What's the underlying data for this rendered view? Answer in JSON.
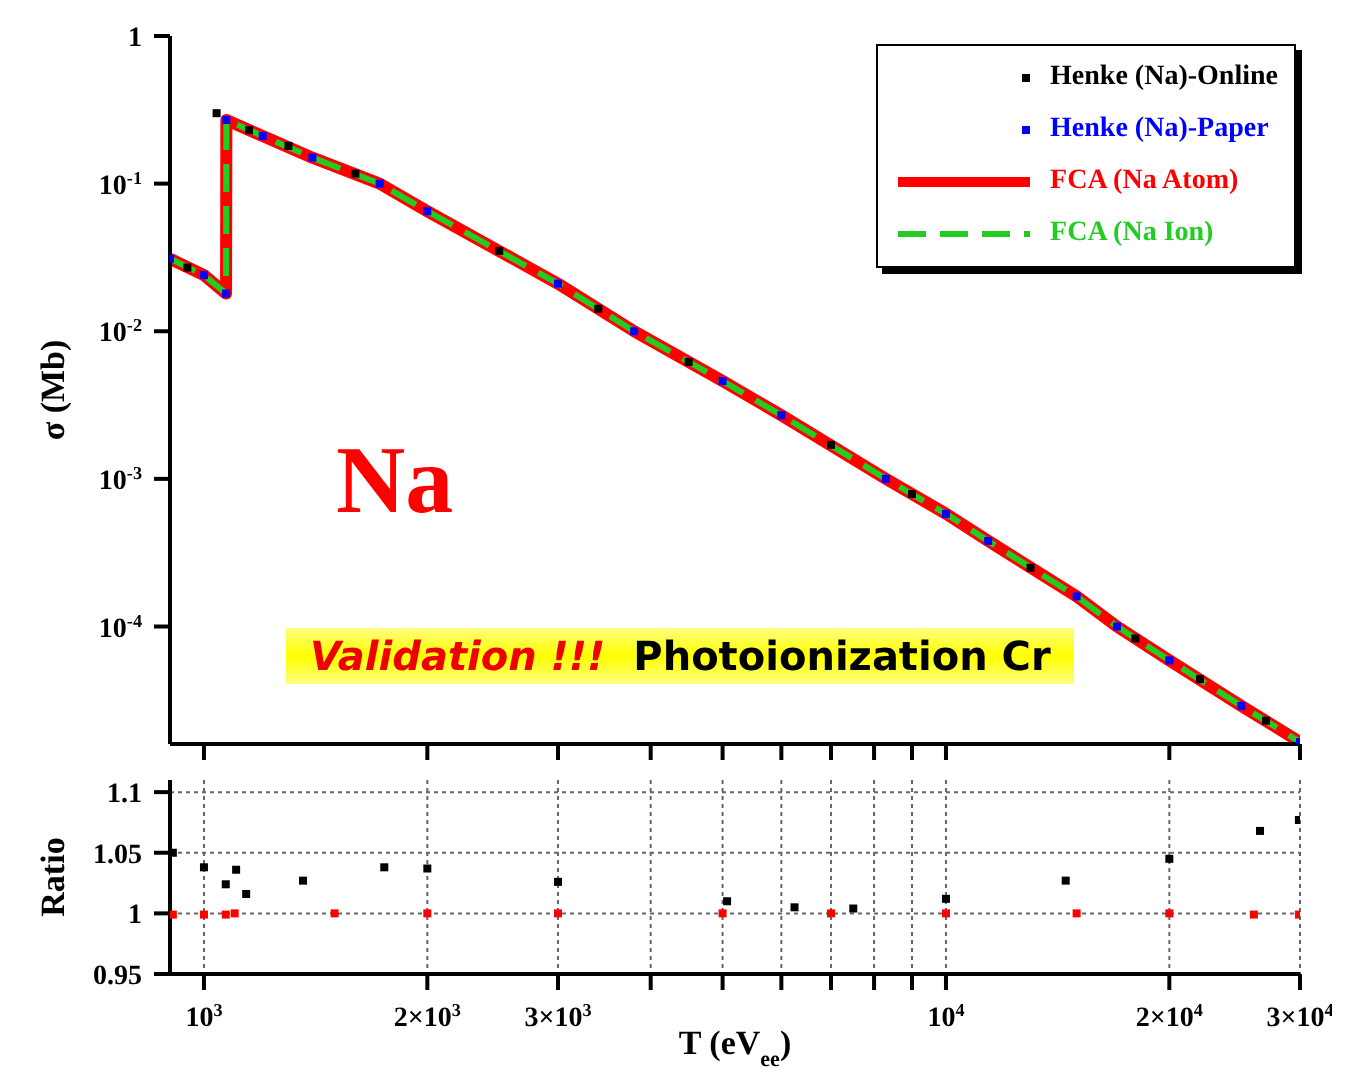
{
  "chart_data": [
    {
      "type": "line",
      "ylabel": "σ (Mb)",
      "annotations": [
        "Na",
        "Validation !!!",
        "Photoionization Cr"
      ],
      "log": "xy",
      "xlim": [
        900,
        30000
      ],
      "ylim": [
        1.6e-05,
        1
      ],
      "xticks": [
        1000,
        2000,
        3000,
        {
          "value": 4000,
          "label": null
        },
        {
          "value": 5000,
          "label": null
        },
        {
          "value": 6000,
          "label": null
        },
        {
          "value": 7000,
          "label": null
        },
        {
          "value": 8000,
          "label": null
        },
        {
          "value": 9000,
          "label": null
        },
        10000,
        20000,
        30000
      ],
      "yticks": [
        1,
        {
          "value": 0.1,
          "label": "10$^{-1}$"
        },
        {
          "value": 0.01,
          "label": "10$^{-2}$"
        },
        {
          "value": 0.001,
          "label": "10$^{-3}$"
        },
        {
          "value": 0.0001,
          "label": "10$^{-4}$"
        }
      ],
      "tick_labels": "y",
      "legend": "top right",
      "grid": false,
      "x": [
        900,
        1000,
        1071,
        1072,
        1200,
        1400,
        1725,
        2000,
        3000,
        3800,
        5000,
        6000,
        8300,
        10000,
        11400,
        15000,
        17000,
        20000,
        25000,
        30000
      ],
      "series": [
        {
          "name": "Henke (Na)-Online",
          "type": "scatter",
          "marker": "square",
          "color": "#000000",
          "x": [
            950,
            1040,
            1150,
            1300,
            1600,
            2500,
            3400,
            4500,
            7000,
            9000,
            13000,
            18000,
            22000,
            27000
          ],
          "values": [
            0.027,
            0.3,
            0.23,
            0.18,
            0.117,
            0.035,
            0.0142,
            0.0062,
            0.0017,
            0.00079,
            0.00025,
            8.3e-05,
            4.4e-05,
            2.3e-05
          ]
        },
        {
          "name": "Henke (Na)-Paper",
          "type": "scatter",
          "marker": "square",
          "color": "#0000ff",
          "values": [
            0.031,
            0.024,
            0.018,
            0.27,
            0.21,
            0.15,
            0.1,
            0.065,
            0.021,
            0.01,
            0.0046,
            0.0027,
            0.001,
            0.00058,
            0.00038,
            0.00016,
            0.0001,
            5.9e-05,
            2.9e-05,
            1.65e-05
          ]
        },
        {
          "name": "FCA (Na Atom)",
          "color": "#ff0000",
          "line_style": "solid",
          "values": [
            0.031,
            0.024,
            0.018,
            0.27,
            0.21,
            0.15,
            0.1,
            0.065,
            0.021,
            0.01,
            0.0046,
            0.0027,
            0.001,
            0.00058,
            0.00038,
            0.00016,
            0.0001,
            5.9e-05,
            2.9e-05,
            1.65e-05
          ]
        },
        {
          "name": "FCA (Na Ion)",
          "color": "#22cc22",
          "line_style": "dashed",
          "values": [
            0.031,
            0.024,
            0.018,
            0.27,
            0.21,
            0.15,
            0.1,
            0.065,
            0.021,
            0.01,
            0.0046,
            0.0027,
            0.001,
            0.00058,
            0.00038,
            0.00016,
            0.0001,
            5.9e-05,
            2.9e-05,
            1.65e-05
          ]
        }
      ]
    },
    {
      "type": "scatter",
      "xlabel": "T (eV$_{ee}$)",
      "ylabel": "Ratio",
      "log": "x",
      "xlim": [
        900,
        30000
      ],
      "ylim": [
        0.95,
        1.11
      ],
      "xticks": [
        {
          "value": 1000,
          "label": "10$^{3}$"
        },
        {
          "value": 2000,
          "label": "2×10$^{3}$"
        },
        {
          "value": 3000,
          "label": "3×10$^{3}$"
        },
        {
          "value": 4000,
          "label": null
        },
        {
          "value": 5000,
          "label": null
        },
        {
          "value": 6000,
          "label": null
        },
        {
          "value": 7000,
          "label": null
        },
        {
          "value": 8000,
          "label": null
        },
        {
          "value": 9000,
          "label": null
        },
        {
          "value": 10000,
          "label": "10$^{4}$"
        },
        {
          "value": 20000,
          "label": "2×10$^{4}$"
        },
        {
          "value": 30000,
          "label": "3×10$^{4}$"
        }
      ],
      "yticks": [
        0.95,
        1,
        1.05,
        1.1
      ],
      "grid": true,
      "marker": "square",
      "series": [
        {
          "color": "#000000",
          "x": [
            908,
            1000,
            1070,
            1105,
            1140,
            1360,
            1750,
            2000,
            3000,
            5070,
            6250,
            7500,
            10000,
            14500,
            20000,
            26500,
            29900
          ],
          "values": [
            1.05,
            1.038,
            1.024,
            1.036,
            1.016,
            1.027,
            1.038,
            1.037,
            1.026,
            1.01,
            1.005,
            1.004,
            1.012,
            1.027,
            1.045,
            1.068,
            1.077
          ]
        },
        {
          "color": "#ff0000",
          "x": [
            908,
            1000,
            1070,
            1100,
            1500,
            2000,
            3000,
            5000,
            7000,
            10000,
            15000,
            20000,
            26000,
            29900
          ],
          "values": [
            0.999,
            0.999,
            0.999,
            1.0,
            1.0,
            1.0,
            1.0,
            1.0,
            1.0,
            1.0,
            1.0,
            1.0,
            0.999,
            0.999
          ]
        }
      ]
    }
  ]
}
